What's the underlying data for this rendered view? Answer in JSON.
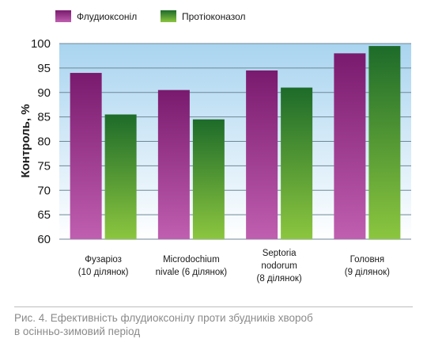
{
  "chart_data": {
    "type": "bar",
    "categories": [
      [
        "Фузаріоз",
        "(10 ділянок)"
      ],
      [
        "Microdochium",
        "nivale (6 ділянок)"
      ],
      [
        "Septoria",
        "nodorum",
        "(8 ділянок)"
      ],
      [
        "Головня",
        "(9 ділянок)"
      ]
    ],
    "series": [
      {
        "name": "Флудиоксоніл",
        "values": [
          94,
          90.5,
          94.5,
          98
        ],
        "color_top": "#7a1a6e",
        "color_bottom": "#c05fb0"
      },
      {
        "name": "Протіоконазол",
        "values": [
          85.5,
          84.5,
          91,
          99.5
        ],
        "color_top": "#1d6b2a",
        "color_bottom": "#8cc63f"
      }
    ],
    "ylabel": "Контроль, %",
    "ylim": [
      60,
      100
    ],
    "yticks": [
      60,
      65,
      70,
      75,
      80,
      85,
      90,
      95,
      100
    ],
    "grid": true,
    "legend_position": "top-left",
    "plot_background_top": "#a9d4f0",
    "plot_background_bottom": "#ffffff"
  },
  "caption": {
    "line1": "Рис. 4. Ефективність флудиоксонілу проти збудників хвороб",
    "line2": "в осінньо-зимовий період"
  }
}
